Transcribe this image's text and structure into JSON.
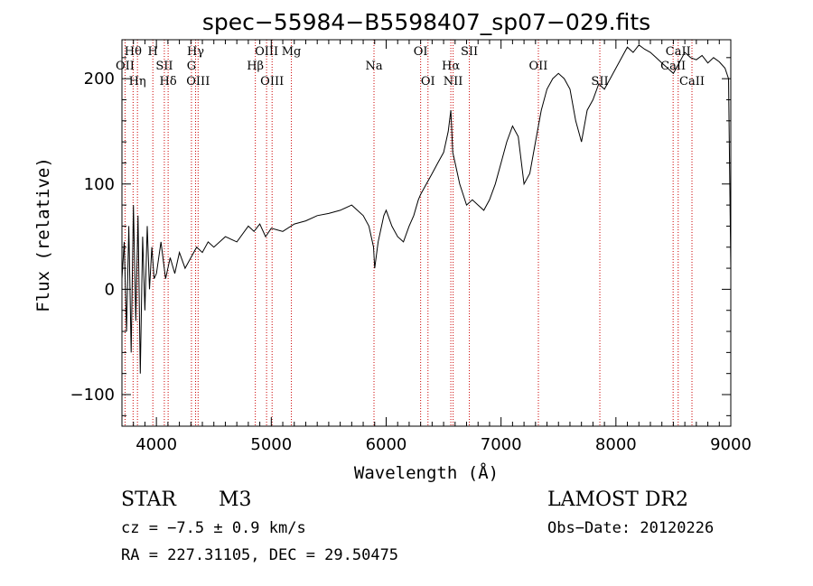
{
  "chart_data": {
    "type": "line",
    "title": "spec−55984−B5598407_sp07−029.fits",
    "xlabel": "Wavelength (Å)",
    "ylabel": "Flux (relative)",
    "xlim": [
      3700,
      9000
    ],
    "ylim": [
      -130,
      237
    ],
    "xticks": [
      4000,
      5000,
      6000,
      7000,
      8000,
      9000
    ],
    "yticks": [
      -100,
      0,
      100,
      200
    ],
    "xtick_labels": [
      "4000",
      "5000",
      "6000",
      "7000",
      "8000",
      "9000"
    ],
    "ytick_labels": [
      "−100",
      "0",
      "100",
      "200"
    ],
    "grid": false,
    "line_color": "#000000",
    "marker_color": "#cc0000",
    "series": [
      {
        "x": [
          3700,
          3720,
          3740,
          3760,
          3780,
          3800,
          3820,
          3840,
          3860,
          3880,
          3900,
          3920,
          3940,
          3960,
          3980,
          4000,
          4040,
          4080,
          4120,
          4160,
          4200,
          4250,
          4300,
          4350,
          4400,
          4450,
          4500,
          4600,
          4700,
          4800,
          4850,
          4900,
          4950,
          5000,
          5100,
          5200,
          5300,
          5400,
          5500,
          5600,
          5700,
          5800,
          5850,
          5890,
          5900,
          5930,
          5980,
          6000,
          6050,
          6100,
          6150,
          6200,
          6240,
          6280,
          6300,
          6350,
          6400,
          6450,
          6500,
          6540,
          6563,
          6580,
          6600,
          6640,
          6700,
          6750,
          6800,
          6850,
          6900,
          6950,
          7000,
          7050,
          7100,
          7150,
          7200,
          7250,
          7300,
          7350,
          7400,
          7450,
          7500,
          7550,
          7600,
          7650,
          7700,
          7750,
          7800,
          7850,
          7900,
          7950,
          8000,
          8050,
          8100,
          8150,
          8200,
          8250,
          8300,
          8350,
          8400,
          8450,
          8500,
          8550,
          8600,
          8650,
          8700,
          8750,
          8800,
          8850,
          8900,
          8950,
          8980,
          9000
        ],
        "y": [
          10,
          45,
          -40,
          60,
          -60,
          80,
          -30,
          70,
          -80,
          50,
          -20,
          60,
          0,
          40,
          10,
          15,
          45,
          10,
          30,
          15,
          35,
          20,
          30,
          40,
          35,
          45,
          40,
          50,
          45,
          60,
          55,
          62,
          50,
          58,
          55,
          62,
          65,
          70,
          72,
          75,
          80,
          70,
          60,
          40,
          20,
          45,
          70,
          75,
          60,
          50,
          45,
          60,
          70,
          85,
          90,
          100,
          110,
          120,
          130,
          150,
          170,
          130,
          120,
          100,
          80,
          85,
          80,
          75,
          85,
          100,
          120,
          140,
          155,
          145,
          100,
          110,
          140,
          170,
          190,
          200,
          205,
          200,
          190,
          160,
          140,
          170,
          180,
          195,
          190,
          200,
          210,
          220,
          230,
          225,
          232,
          228,
          225,
          220,
          215,
          210,
          205,
          215,
          225,
          220,
          218,
          222,
          215,
          220,
          216,
          210,
          200,
          20
        ]
      }
    ],
    "line_markers": [
      {
        "label": "Hθ",
        "x": 3797
      },
      {
        "label": "OII",
        "x": 3727
      },
      {
        "label": "Hη",
        "x": 3835
      },
      {
        "label": "H",
        "x": 3969
      },
      {
        "label": "SII",
        "x": 4069
      },
      {
        "label": "Hδ",
        "x": 4102
      },
      {
        "label": "Hγ",
        "x": 4341
      },
      {
        "label": "G",
        "x": 4305
      },
      {
        "label": "OIII",
        "x": 4363
      },
      {
        "label": "OIII",
        "x": 4959
      },
      {
        "label": "Hβ",
        "x": 4861
      },
      {
        "label": "OIII",
        "x": 5007
      },
      {
        "label": "Mg",
        "x": 5175
      },
      {
        "label": "Na",
        "x": 5894
      },
      {
        "label": "OI",
        "x": 6364
      },
      {
        "label": "OI",
        "x": 6300
      },
      {
        "label": "Hα",
        "x": 6563
      },
      {
        "label": "NII",
        "x": 6583
      },
      {
        "label": "SII",
        "x": 6724
      },
      {
        "label": "OII",
        "x": 7325
      },
      {
        "label": "SII",
        "x": 7860
      },
      {
        "label": "CaII",
        "x": 8542
      },
      {
        "label": "CaII",
        "x": 8498
      },
      {
        "label": "CaII",
        "x": 8662
      }
    ]
  },
  "info": {
    "object_class": "STAR",
    "subclass": "M3",
    "survey": "LAMOST DR2",
    "velocity": "cz = −7.5 ± 0.9 km/s",
    "obs_date": "Obs−Date: 20120226",
    "coords": "RA = 227.31105, DEC =  29.50475"
  }
}
